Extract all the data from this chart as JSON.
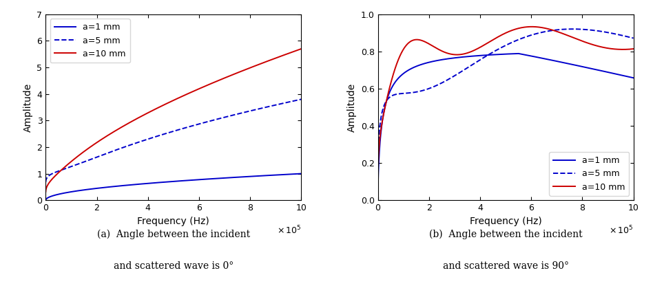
{
  "colors": {
    "blue": "#0000CC",
    "red": "#CC0000"
  },
  "lw": 1.4,
  "subplot_a": {
    "xlim": [
      0,
      10
    ],
    "ylim": [
      0,
      7
    ],
    "yticks": [
      0,
      1,
      2,
      3,
      4,
      5,
      6,
      7
    ],
    "xticks": [
      0,
      2,
      4,
      6,
      8,
      10
    ],
    "xlabel": "Frequency (Hz)",
    "ylabel": "Amplitude",
    "legend": [
      "a=1 mm",
      "a=5 mm",
      "a=10 mm"
    ]
  },
  "subplot_b": {
    "xlim": [
      0,
      10
    ],
    "ylim": [
      0,
      1.0
    ],
    "yticks": [
      0,
      0.2,
      0.4,
      0.6,
      0.8,
      1.0
    ],
    "xticks": [
      0,
      2,
      4,
      6,
      8,
      10
    ],
    "xlabel": "Frequency (Hz)",
    "ylabel": "Amplitude",
    "legend": [
      "a=1 mm",
      "a=5 mm",
      "a=10 mm"
    ]
  },
  "caption_a_line1": "(a)  Angle between the incident",
  "caption_a_line2": "and scattered wave is 0°",
  "caption_b_line1": "(b)  Angle between the incident",
  "caption_b_line2": "and scattered wave is 90°"
}
